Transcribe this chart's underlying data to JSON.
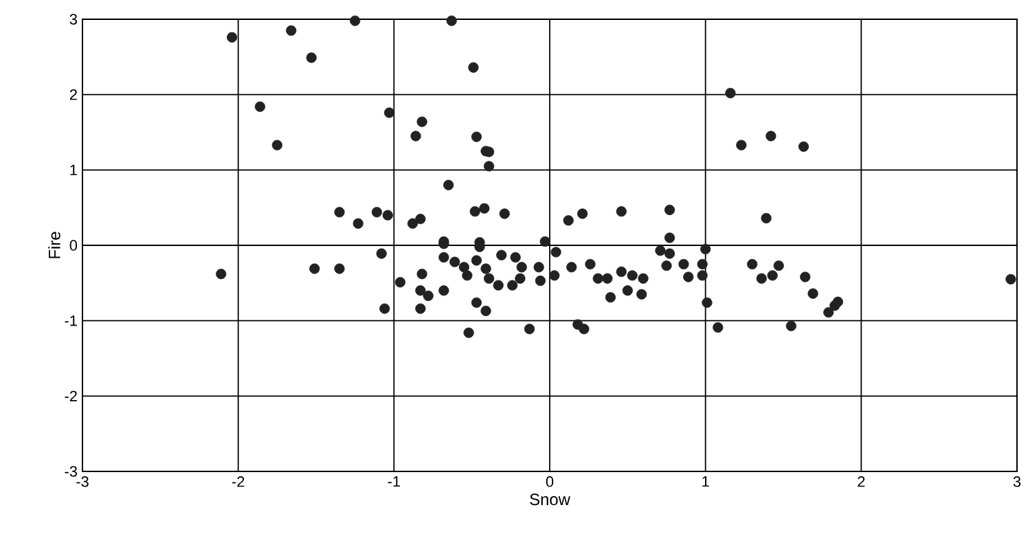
{
  "chart_data": {
    "type": "scatter",
    "xlabel": "Snow",
    "ylabel": "Fire",
    "x": [
      -2.04,
      -1.66,
      -1.25,
      -0.63,
      -1.53,
      -0.49,
      -1.86,
      -1.75,
      -1.03,
      -0.82,
      -0.86,
      -0.47,
      -0.41,
      -0.39,
      -0.39,
      1.16,
      1.23,
      1.42,
      1.63,
      -0.65,
      -1.35,
      -1.23,
      -1.11,
      -1.04,
      -0.88,
      -0.83,
      -0.48,
      -0.42,
      -0.29,
      -0.68,
      -0.45,
      -0.03,
      0.12,
      0.21,
      0.46,
      0.77,
      0.77,
      1.39,
      -2.11,
      -1.51,
      -1.35,
      -1.08,
      -1.06,
      -0.96,
      -0.82,
      -0.83,
      -0.78,
      -0.83,
      -0.68,
      -0.68,
      -0.45,
      -0.68,
      -0.61,
      -0.55,
      -0.53,
      -0.47,
      -0.41,
      -0.39,
      -0.33,
      -0.31,
      -0.22,
      -0.18,
      -0.19,
      -0.24,
      -0.07,
      -0.06,
      -0.47,
      -0.41,
      -0.52,
      -0.13,
      0.04,
      0.03,
      0.14,
      0.26,
      0.31,
      0.37,
      0.39,
      0.46,
      0.53,
      0.6,
      0.5,
      0.59,
      0.18,
      0.22,
      0.71,
      0.77,
      0.75,
      0.86,
      0.89,
      0.98,
      0.98,
      1.0,
      1.01,
      1.08,
      1.3,
      1.36,
      1.43,
      1.47,
      1.55,
      1.64,
      1.69,
      1.79,
      1.85,
      1.83,
      2.96
    ],
    "values": [
      2.76,
      2.85,
      2.98,
      2.98,
      2.49,
      2.36,
      1.84,
      1.33,
      1.76,
      1.64,
      1.45,
      1.44,
      1.25,
      1.24,
      1.05,
      2.02,
      1.33,
      1.45,
      1.31,
      0.8,
      0.44,
      0.29,
      0.44,
      0.4,
      0.29,
      0.35,
      0.45,
      0.49,
      0.42,
      0.05,
      0.04,
      0.05,
      0.33,
      0.42,
      0.45,
      0.47,
      0.1,
      0.36,
      -0.38,
      -0.31,
      -0.31,
      -0.11,
      -0.84,
      -0.49,
      -0.38,
      -0.6,
      -0.67,
      -0.84,
      -0.6,
      0.02,
      -0.02,
      -0.16,
      -0.22,
      -0.29,
      -0.4,
      -0.2,
      -0.31,
      -0.44,
      -0.53,
      -0.13,
      -0.16,
      -0.29,
      -0.44,
      -0.53,
      -0.29,
      -0.47,
      -0.76,
      -0.87,
      -1.16,
      -1.11,
      -0.09,
      -0.4,
      -0.29,
      -0.25,
      -0.44,
      -0.44,
      -0.69,
      -0.35,
      -0.4,
      -0.44,
      -0.6,
      -0.65,
      -1.05,
      -1.11,
      -0.07,
      -0.11,
      -0.27,
      -0.25,
      -0.42,
      -0.25,
      -0.4,
      -0.05,
      -0.76,
      -1.09,
      -0.25,
      -0.44,
      -0.4,
      -0.27,
      -1.07,
      -0.42,
      -0.64,
      -0.89,
      -0.75,
      -0.8,
      -0.45
    ],
    "color": "#222222",
    "marker": "circle",
    "grid": true,
    "xlim": [
      -3,
      3
    ],
    "ylim": [
      -3,
      3
    ],
    "xticks": [
      -3,
      -2,
      -1,
      0,
      1,
      2,
      3
    ],
    "yticks": [
      -3,
      -2,
      -1,
      0,
      1,
      2,
      3
    ]
  }
}
